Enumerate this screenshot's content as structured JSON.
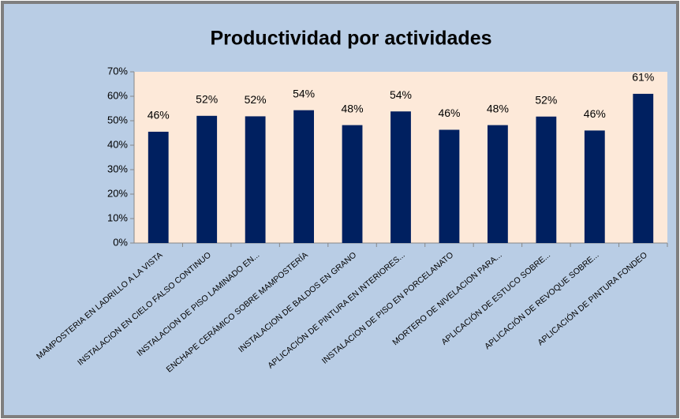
{
  "chart_data": {
    "type": "bar",
    "title": "Productividad por actividades",
    "categories": [
      "MAMPOSTERIA EN LADRILLO A LA VISTA",
      "INSTALACION EN CIELO FALSO CONTINUO",
      "INSTALACION DE PISO LAMINADO EN...",
      "ENCHAPE CERÁMICO SOBRE MAMPOSTERÍA",
      "INSTALACION DE BALDOS EN GRANO",
      "APLICACIÓN DE PINTURA EN INTERIORES...",
      "INSTALACION DE PISO EN PORCELANATO",
      "MORTERO DE NIVELACION PARA...",
      "APLICACIÓN DE ESTUCO SOBRE...",
      "APLICACIÓN DE REVOQUE SOBRE...",
      "APLICACIÓN DE PINTURA FONDEO"
    ],
    "values": [
      45.5,
      52,
      51.8,
      54.3,
      48.2,
      53.8,
      46.3,
      48.2,
      51.7,
      46,
      61
    ],
    "value_labels": [
      "46%",
      "52%",
      "52%",
      "54%",
      "48%",
      "54%",
      "46%",
      "48%",
      "52%",
      "46%",
      "61%"
    ],
    "color": "#002060",
    "ylim": [
      0,
      70
    ],
    "yticks": [
      {
        "value": 0,
        "label": "0%"
      },
      {
        "value": 10,
        "label": "10%"
      },
      {
        "value": 20,
        "label": "20%"
      },
      {
        "value": 30,
        "label": "30%"
      },
      {
        "value": 40,
        "label": "40%"
      },
      {
        "value": 50,
        "label": "50%"
      },
      {
        "value": 60,
        "label": "60%"
      },
      {
        "value": 70,
        "label": "70%"
      }
    ],
    "grid": false
  }
}
